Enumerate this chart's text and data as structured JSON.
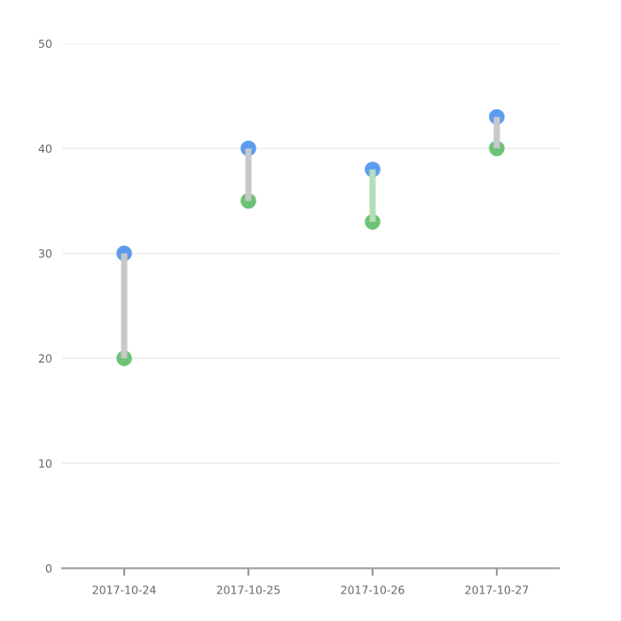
{
  "chart_data": {
    "type": "bar",
    "categories": [
      "2017-10-24",
      "2017-10-25",
      "2017-10-26",
      "2017-10-27"
    ],
    "series": [
      {
        "base": [
          20,
          35,
          33,
          40
        ],
        "values": [
          10,
          5,
          5,
          3
        ],
        "colors": [
          "#c8c8c8",
          "#c8c8c8",
          "#b3dfb8",
          "#c8c8c8"
        ]
      },
      {
        "type": "scatter",
        "values": [
          30,
          40,
          38,
          43
        ],
        "color": "#5b9cf0"
      },
      {
        "type": "scatter",
        "values": [
          20,
          35,
          33,
          40
        ],
        "color": "#6cc375"
      }
    ],
    "marker": "circle",
    "ylim": [
      0,
      50
    ],
    "yticks": [
      0,
      10,
      20,
      30,
      40,
      50
    ],
    "grid": "y"
  }
}
